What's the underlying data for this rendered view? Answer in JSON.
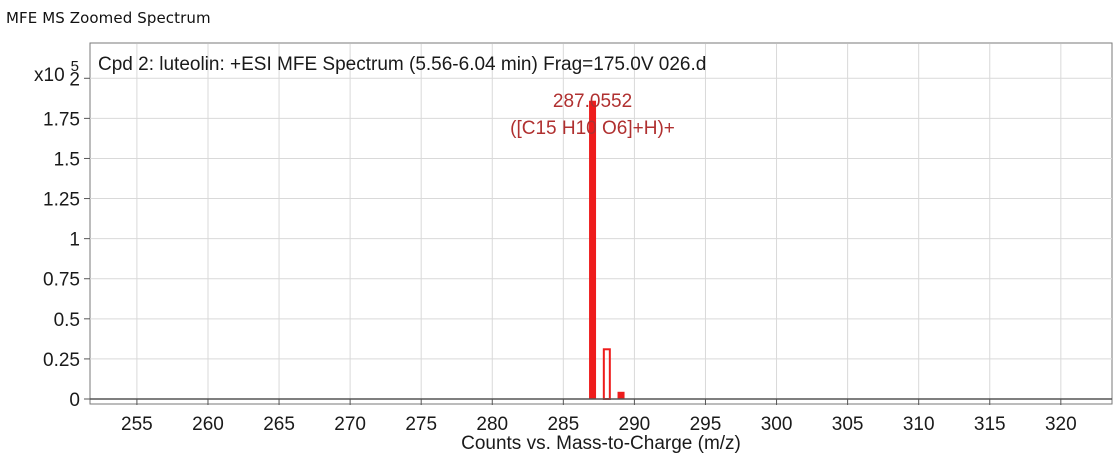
{
  "window": {
    "title": "MFE MS Zoomed Spectrum"
  },
  "chart_data": {
    "type": "bar",
    "title": "Cpd 2: luteolin: +ESI MFE Spectrum (5.56-6.04 min) Frag=175.0V 026.d",
    "xlabel": "Counts vs. Mass-to-Charge (m/z)",
    "ylabel": "",
    "y_multiplier": {
      "base": "x10",
      "exponent": "5"
    },
    "xlim": [
      251.7,
      323.6
    ],
    "ylim": [
      0,
      2.22
    ],
    "x_ticks": [
      255,
      260,
      265,
      270,
      275,
      280,
      285,
      290,
      295,
      300,
      305,
      310,
      315,
      320
    ],
    "x_tick_labels": [
      "255",
      "260",
      "265",
      "270",
      "275",
      "280",
      "285",
      "290",
      "295",
      "300",
      "305",
      "310",
      "315",
      "320"
    ],
    "y_ticks": [
      0,
      0.25,
      0.5,
      0.75,
      1,
      1.25,
      1.5,
      1.75,
      2
    ],
    "y_tick_labels": [
      "0",
      "0.25",
      "0.5",
      "0.75",
      "1",
      "1.25",
      "1.5",
      "1.75",
      "2"
    ],
    "grid": true,
    "peaks": [
      {
        "mz": 287.0552,
        "intensity": 1.86,
        "style": "filled"
      },
      {
        "mz": 288.06,
        "intensity": 0.31,
        "style": "outline"
      },
      {
        "mz": 289.06,
        "intensity": 0.045,
        "style": "filled"
      }
    ],
    "annotations": [
      {
        "mz": 287.0552,
        "lines": [
          "287.0552",
          "([C15 H10 O6]+H)+"
        ]
      }
    ],
    "colors": {
      "peak": "#ee1c1c",
      "annotation": "#b03030",
      "grid": "#d9d9d9",
      "axis": "#555555"
    }
  }
}
